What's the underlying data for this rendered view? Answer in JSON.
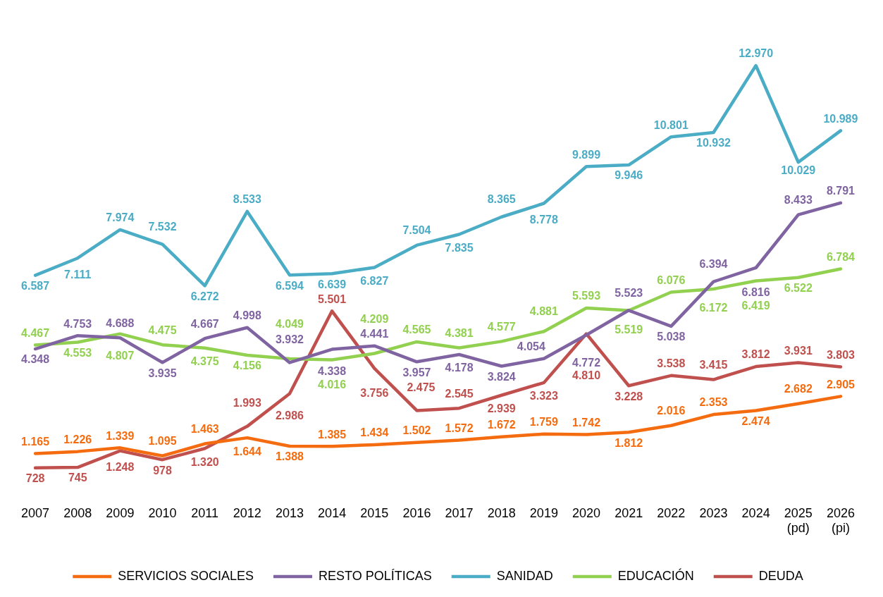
{
  "chart_data": {
    "type": "line",
    "categories": [
      "2007",
      "2008",
      "2009",
      "2010",
      "2011",
      "2012",
      "2013",
      "2014",
      "2015",
      "2016",
      "2017",
      "2018",
      "2019",
      "2020",
      "2021",
      "2022",
      "2023",
      "2024",
      "2025\n(pd)",
      "2026\n(pi)"
    ],
    "series": [
      {
        "name": "SERVICIOS SOCIALES",
        "color": "#f46c0f",
        "values": [
          1165,
          1226,
          1339,
          1095,
          1463,
          1644,
          1388,
          1385,
          1434,
          1502,
          1572,
          1672,
          1759,
          1742,
          1812,
          2016,
          2353,
          2474,
          2682,
          2905
        ],
        "value_labels": [
          "1.165",
          "1.226",
          "1.339",
          "1.095",
          "1.463",
          "1.644",
          "1.388",
          "1.385",
          "1.434",
          "1.502",
          "1.572",
          "1.672",
          "1.759",
          "1.742",
          "1.812",
          "2.016",
          "2.353",
          "2.474",
          "2.682",
          "2.905"
        ]
      },
      {
        "name": "RESTO POLÍTICAS",
        "color": "#8064a2",
        "values": [
          4348,
          4753,
          4688,
          3935,
          4667,
          4998,
          3932,
          4338,
          4441,
          3957,
          4178,
          3824,
          4054,
          4772,
          5523,
          5038,
          6394,
          6816,
          8433,
          8791
        ],
        "value_labels": [
          "4.348",
          "4.753",
          "4.688",
          "3.935",
          "4.667",
          "4.998",
          "3.932",
          "4.338",
          "4.441",
          "3.957",
          "4.178",
          "3.824",
          "4.054",
          "4.772",
          "5.523",
          "5.038",
          "6.394",
          "6.816",
          "8.433",
          "8.791"
        ]
      },
      {
        "name": "SANIDAD",
        "color": "#4bacc6",
        "values": [
          6587,
          7111,
          7974,
          7532,
          6272,
          8533,
          6594,
          6639,
          6827,
          7504,
          7835,
          8365,
          8778,
          9899,
          9946,
          10801,
          10932,
          12970,
          10029,
          10989
        ],
        "value_labels": [
          "6.587",
          "7.111",
          "7.974",
          "7.532",
          "6.272",
          "8.533",
          "6.594",
          "6.639",
          "6.827",
          "7.504",
          "7.835",
          "8.365",
          "8.778",
          "9.899",
          "9.946",
          "10.801",
          "10.932",
          "12.970",
          "10.029",
          "10.989"
        ]
      },
      {
        "name": "EDUCACIÓN",
        "color": "#92d050",
        "values": [
          4467,
          4553,
          4807,
          4475,
          4375,
          4156,
          4049,
          4016,
          4209,
          4565,
          4381,
          4577,
          4881,
          5593,
          5519,
          6076,
          6172,
          6419,
          6522,
          6784
        ],
        "value_labels": [
          "4.467",
          "4.553",
          "4.807",
          "4.475",
          "4.375",
          "4.156",
          "4.049",
          "4.016",
          "4.209",
          "4.565",
          "4.381",
          "4.577",
          "4.881",
          "5.593",
          "5.519",
          "6.076",
          "6.172",
          "6.419",
          "6.522",
          "6.784"
        ]
      },
      {
        "name": "DEUDA",
        "color": "#c0504d",
        "values": [
          728,
          745,
          1248,
          978,
          1320,
          1993,
          2986,
          5501,
          3756,
          2475,
          2545,
          2939,
          3323,
          4810,
          3228,
          3538,
          3415,
          3812,
          3931,
          3803
        ],
        "value_labels": [
          "728",
          "745",
          "1.248",
          "978",
          "1.320",
          "1.993",
          "2.986",
          "5.501",
          "3.756",
          "2.475",
          "2.545",
          "2.939",
          "3.323",
          "4.810",
          "3.228",
          "3.538",
          "3.415",
          "3.812",
          "3.931",
          "3.803"
        ]
      }
    ],
    "tick_labels": "x",
    "grid": false,
    "legend": "bottom",
    "marker": "none",
    "line_style": "solid"
  }
}
